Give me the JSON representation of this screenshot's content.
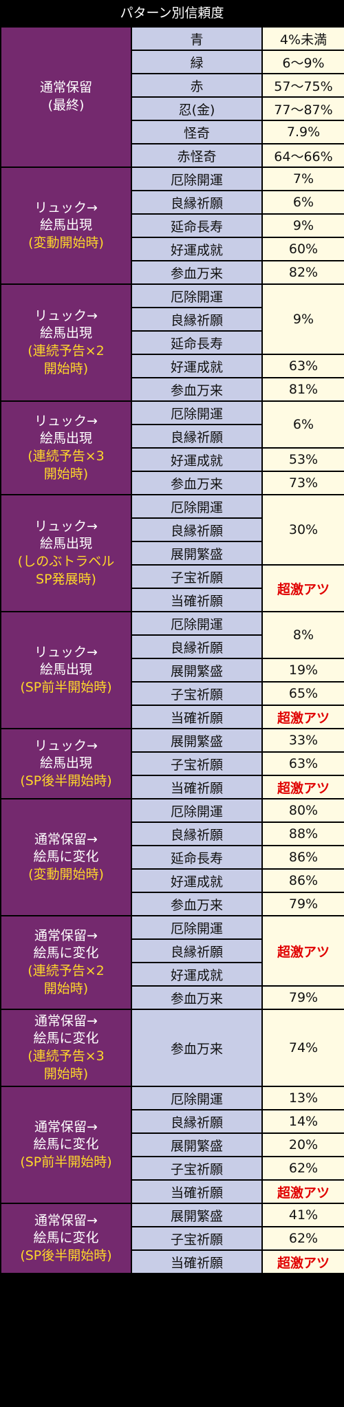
{
  "title": "パターン別信頼度",
  "groups": [
    {
      "label": [
        "通常保留",
        "(最終)"
      ],
      "sub": [],
      "rows": [
        {
          "pattern": "青",
          "value": "4%未満"
        },
        {
          "pattern": "緑",
          "value": "6～9%"
        },
        {
          "pattern": "赤",
          "value": "57～75%"
        },
        {
          "pattern": "忍(金)",
          "value": "77～87%"
        },
        {
          "pattern": "怪奇",
          "value": "7.9%"
        },
        {
          "pattern": "赤怪奇",
          "value": "64～66%"
        }
      ],
      "values": [
        {
          "text": "4%未満",
          "span": 1
        },
        {
          "text": "6～9%",
          "span": 1
        },
        {
          "text": "57～75%",
          "span": 1
        },
        {
          "text": "77～87%",
          "span": 1
        },
        {
          "text": "7.9%",
          "span": 1
        },
        {
          "text": "64～66%",
          "span": 1
        }
      ]
    },
    {
      "label": [
        "リュック→",
        "絵馬出現"
      ],
      "sub": [
        "(変動開始時)"
      ],
      "rows": [
        {
          "pattern": "厄除開運"
        },
        {
          "pattern": "良縁祈願"
        },
        {
          "pattern": "延命長寿"
        },
        {
          "pattern": "好運成就"
        },
        {
          "pattern": "参血万来"
        }
      ],
      "values": [
        {
          "text": "7%",
          "span": 1
        },
        {
          "text": "6%",
          "span": 1
        },
        {
          "text": "9%",
          "span": 1
        },
        {
          "text": "60%",
          "span": 1
        },
        {
          "text": "82%",
          "span": 1
        }
      ]
    },
    {
      "label": [
        "リュック→",
        "絵馬出現"
      ],
      "sub": [
        "(連続予告×2",
        "開始時)"
      ],
      "rows": [
        {
          "pattern": "厄除開運"
        },
        {
          "pattern": "良縁祈願"
        },
        {
          "pattern": "延命長寿"
        },
        {
          "pattern": "好運成就"
        },
        {
          "pattern": "参血万来"
        }
      ],
      "values": [
        {
          "text": "9%",
          "span": 3
        },
        {
          "text": "63%",
          "span": 1
        },
        {
          "text": "81%",
          "span": 1
        }
      ]
    },
    {
      "label": [
        "リュック→",
        "絵馬出現"
      ],
      "sub": [
        "(連続予告×3",
        "開始時)"
      ],
      "rows": [
        {
          "pattern": "厄除開運"
        },
        {
          "pattern": "良縁祈願"
        },
        {
          "pattern": "好運成就"
        },
        {
          "pattern": "参血万来"
        }
      ],
      "values": [
        {
          "text": "6%",
          "span": 2
        },
        {
          "text": "53%",
          "span": 1
        },
        {
          "text": "73%",
          "span": 1
        }
      ]
    },
    {
      "label": [
        "リュック→",
        "絵馬出現"
      ],
      "sub": [
        "(しのぶトラベル",
        "SP発展時)"
      ],
      "rows": [
        {
          "pattern": "厄除開運"
        },
        {
          "pattern": "良縁祈願"
        },
        {
          "pattern": "展開繁盛"
        },
        {
          "pattern": "子宝祈願"
        },
        {
          "pattern": "当確祈願"
        }
      ],
      "values": [
        {
          "text": "30%",
          "span": 3
        },
        {
          "text": "超激アツ",
          "span": 2,
          "red": true
        }
      ]
    },
    {
      "label": [
        "リュック→",
        "絵馬出現"
      ],
      "sub": [
        "(SP前半開始時)"
      ],
      "rows": [
        {
          "pattern": "厄除開運"
        },
        {
          "pattern": "良縁祈願"
        },
        {
          "pattern": "展開繁盛"
        },
        {
          "pattern": "子宝祈願"
        },
        {
          "pattern": "当確祈願"
        }
      ],
      "values": [
        {
          "text": "8%",
          "span": 2
        },
        {
          "text": "19%",
          "span": 1
        },
        {
          "text": "65%",
          "span": 1
        },
        {
          "text": "超激アツ",
          "span": 1,
          "red": true
        }
      ]
    },
    {
      "label": [
        "リュック→",
        "絵馬出現"
      ],
      "sub": [
        "(SP後半開始時)"
      ],
      "rows": [
        {
          "pattern": "展開繁盛"
        },
        {
          "pattern": "子宝祈願"
        },
        {
          "pattern": "当確祈願"
        }
      ],
      "values": [
        {
          "text": "33%",
          "span": 1
        },
        {
          "text": "63%",
          "span": 1
        },
        {
          "text": "超激アツ",
          "span": 1,
          "red": true
        }
      ]
    },
    {
      "label": [
        "通常保留→",
        "絵馬に変化"
      ],
      "sub": [
        "(変動開始時)"
      ],
      "rows": [
        {
          "pattern": "厄除開運"
        },
        {
          "pattern": "良縁祈願"
        },
        {
          "pattern": "延命長寿"
        },
        {
          "pattern": "好運成就"
        },
        {
          "pattern": "参血万来"
        }
      ],
      "values": [
        {
          "text": "80%",
          "span": 1
        },
        {
          "text": "88%",
          "span": 1
        },
        {
          "text": "86%",
          "span": 1
        },
        {
          "text": "86%",
          "span": 1
        },
        {
          "text": "79%",
          "span": 1
        }
      ]
    },
    {
      "label": [
        "通常保留→",
        "絵馬に変化"
      ],
      "sub": [
        "(連続予告×2",
        "開始時)"
      ],
      "rows": [
        {
          "pattern": "厄除開運"
        },
        {
          "pattern": "良縁祈願"
        },
        {
          "pattern": "好運成就"
        },
        {
          "pattern": "参血万来"
        }
      ],
      "values": [
        {
          "text": "超激アツ",
          "span": 3,
          "red": true
        },
        {
          "text": "79%",
          "span": 1
        }
      ]
    },
    {
      "label": [
        "通常保留→",
        "絵馬に変化"
      ],
      "sub": [
        "(連続予告×3",
        "開始時)"
      ],
      "tall": true,
      "rows": [
        {
          "pattern": "参血万来"
        }
      ],
      "values": [
        {
          "text": "74%",
          "span": 1
        }
      ]
    },
    {
      "label": [
        "通常保留→",
        "絵馬に変化"
      ],
      "sub": [
        "(SP前半開始時)"
      ],
      "rows": [
        {
          "pattern": "厄除開運"
        },
        {
          "pattern": "良縁祈願"
        },
        {
          "pattern": "展開繁盛"
        },
        {
          "pattern": "子宝祈願"
        },
        {
          "pattern": "当確祈願"
        }
      ],
      "values": [
        {
          "text": "13%",
          "span": 1
        },
        {
          "text": "14%",
          "span": 1
        },
        {
          "text": "20%",
          "span": 1
        },
        {
          "text": "62%",
          "span": 1
        },
        {
          "text": "超激アツ",
          "span": 1,
          "red": true
        }
      ]
    },
    {
      "label": [
        "通常保留→",
        "絵馬に変化"
      ],
      "sub": [
        "(SP後半開始時)"
      ],
      "rows": [
        {
          "pattern": "展開繁盛"
        },
        {
          "pattern": "子宝祈願"
        },
        {
          "pattern": "当確祈願"
        }
      ],
      "values": [
        {
          "text": "41%",
          "span": 1
        },
        {
          "text": "62%",
          "span": 1
        },
        {
          "text": "超激アツ",
          "span": 1,
          "red": true
        }
      ]
    }
  ]
}
